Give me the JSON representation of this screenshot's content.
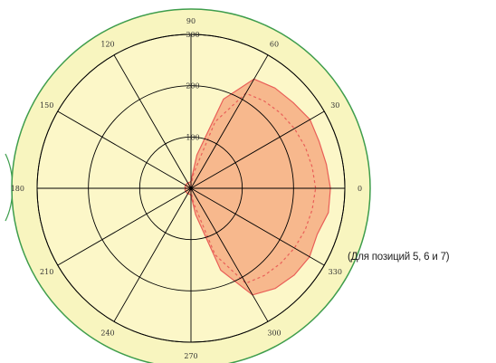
{
  "chart_data": {
    "type": "polar-area",
    "title": "",
    "caption": "(Для позиций 5, 6 и 7)",
    "radial_axis": {
      "max": 300,
      "ticks": [
        100,
        200,
        300
      ]
    },
    "angular_axis": {
      "unit": "degrees",
      "ticks": [
        0,
        30,
        60,
        90,
        120,
        150,
        180,
        210,
        240,
        270,
        300,
        330
      ]
    },
    "colors": {
      "outer_ring": "#f8f5bf",
      "outer_ring_border": "#3e9d4c",
      "plot_background": "#fcf7c8",
      "filled_series": "#f7b88d",
      "filled_series_border": "#e95f58",
      "dashed_series": "#e95f58",
      "grid": "#000000"
    },
    "series": [
      {
        "style": "filled",
        "angles": [
          0,
          10,
          20,
          30,
          40,
          50,
          60,
          70,
          80,
          90,
          100,
          110,
          120,
          130,
          140,
          150,
          160,
          170,
          180,
          190,
          200,
          210,
          220,
          230,
          240,
          250,
          260,
          270,
          280,
          290,
          300,
          310,
          320,
          330,
          340,
          350
        ],
        "values": [
          272,
          268,
          266,
          268,
          260,
          255,
          246,
          185,
          66,
          14,
          12,
          12,
          12,
          12,
          12,
          12,
          12,
          12,
          10,
          12,
          12,
          12,
          12,
          12,
          12,
          12,
          12,
          14,
          52,
          170,
          240,
          255,
          263,
          267,
          262,
          272
        ]
      },
      {
        "style": "dashed",
        "angles": [
          0,
          10,
          20,
          30,
          40,
          50,
          60,
          70,
          80,
          90,
          180,
          270,
          280,
          290,
          300,
          310,
          320,
          330,
          340,
          350
        ],
        "values": [
          243,
          240,
          237,
          233,
          228,
          222,
          214,
          138,
          30,
          6,
          0,
          6,
          30,
          138,
          214,
          222,
          228,
          233,
          237,
          240
        ]
      }
    ]
  }
}
